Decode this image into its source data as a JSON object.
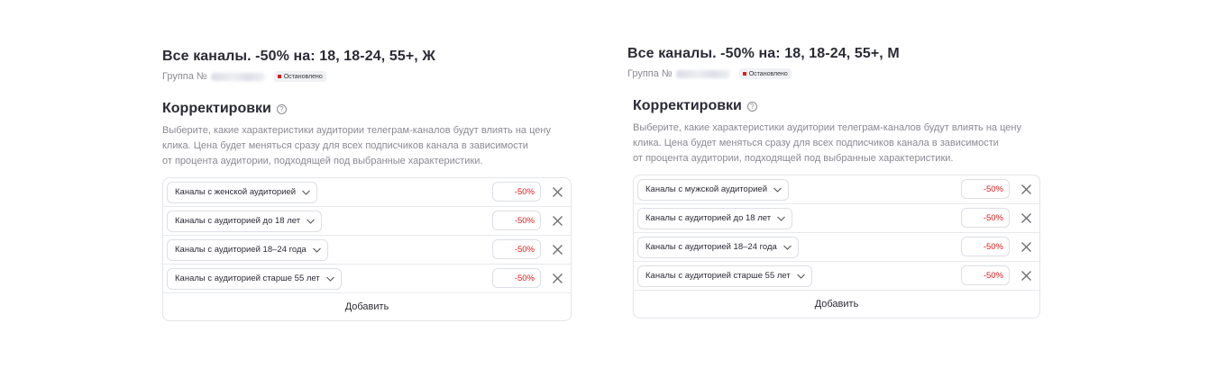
{
  "panels": [
    {
      "title": "Все каналы. -50% на: 18, 18-24, 55+, Ж",
      "group_label": "Группа №",
      "status": "Остановлено",
      "section_title": "Корректировки",
      "help_glyph": "?",
      "description": [
        "Выберите, какие характеристики аудитории телеграм-каналов будут влиять на цену",
        "клика. Цена будет меняться сразу для всех подписчиков канала в зависимости",
        "от процента аудитории, подходящей под выбранные характеристики."
      ],
      "rows": [
        {
          "select": "Каналы с женской аудиторией",
          "value": "-50%"
        },
        {
          "select": "Каналы с аудиторией до 18 лет",
          "value": "-50%"
        },
        {
          "select": "Каналы с аудиторией 18–24 года",
          "value": "-50%"
        },
        {
          "select": "Каналы с аудиторией старше 55 лет",
          "value": "-50%"
        }
      ],
      "add_label": "Добавить"
    },
    {
      "title": "Все каналы. -50% на: 18, 18-24, 55+, М",
      "group_label": "Группа №",
      "status": "Остановлено",
      "section_title": "Корректировки",
      "help_glyph": "?",
      "description": [
        "Выберите, какие характеристики аудитории телеграм-каналов будут влиять на цену",
        "клика. Цена будет меняться сразу для всех подписчиков канала в зависимости",
        "от процента аудитории, подходящей под выбранные характеристики."
      ],
      "rows": [
        {
          "select": "Каналы с мужской аудиторией",
          "value": "-50%"
        },
        {
          "select": "Каналы с аудиторией до 18 лет",
          "value": "-50%"
        },
        {
          "select": "Каналы с аудиторией 18–24 года",
          "value": "-50%"
        },
        {
          "select": "Каналы с аудиторией старше 55 лет",
          "value": "-50%"
        }
      ],
      "add_label": "Добавить"
    }
  ],
  "colors": {
    "accent_red": "#e01b1b",
    "muted_text": "#8a8a93",
    "title_text": "#2b2b36"
  },
  "icons": {
    "chevron": "chevron-down-icon",
    "close": "close-icon",
    "help": "help-icon",
    "status": "status-dot-icon"
  }
}
